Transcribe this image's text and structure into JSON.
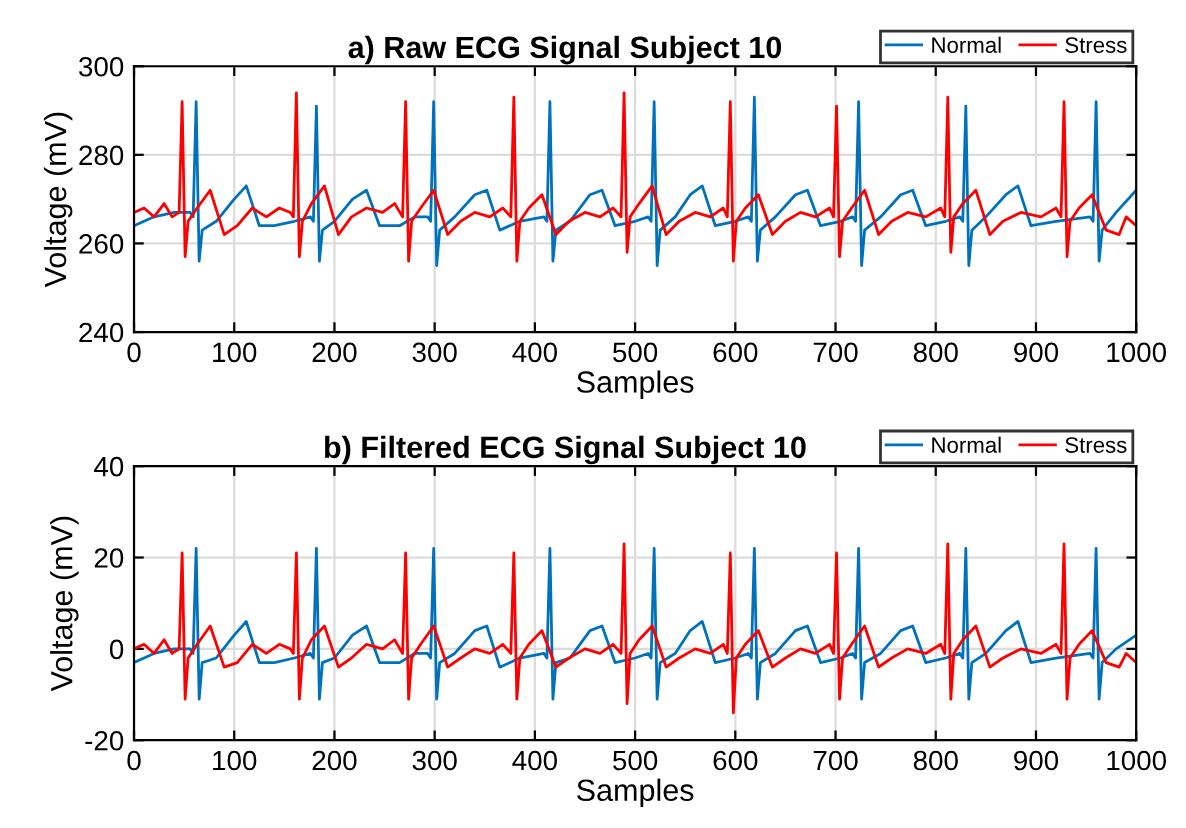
{
  "chart_data": [
    {
      "type": "line",
      "title": "a) Raw ECG Signal Subject 10",
      "xlabel": "Samples",
      "ylabel": "Voltage (mV)",
      "xlim": [
        0,
        1000
      ],
      "ylim": [
        240,
        300
      ],
      "xticks": [
        0,
        100,
        200,
        300,
        400,
        500,
        600,
        700,
        800,
        900,
        1000
      ],
      "yticks": [
        240,
        260,
        280,
        300
      ],
      "grid": true,
      "legend": "top right",
      "series": [
        {
          "name": "Normal",
          "color": "#0072bd",
          "x": [
            0,
            20,
            40,
            56,
            59,
            62,
            65,
            68,
            82,
            100,
            112,
            125,
            140,
            160,
            176,
            179,
            182,
            185,
            188,
            200,
            218,
            232,
            245,
            265,
            280,
            293,
            296,
            299,
            302,
            305,
            320,
            340,
            352,
            365,
            385,
            409,
            412,
            415,
            418,
            421,
            435,
            455,
            467,
            480,
            500,
            513,
            516,
            519,
            522,
            525,
            540,
            555,
            567,
            580,
            600,
            613,
            616,
            619,
            622,
            625,
            640,
            660,
            672,
            685,
            705,
            717,
            720,
            723,
            726,
            729,
            745,
            765,
            777,
            790,
            810,
            824,
            827,
            830,
            833,
            836,
            850,
            870,
            882,
            895,
            920,
            954,
            957,
            960,
            963,
            966,
            980,
            1000
          ],
          "values": [
            264,
            266,
            267,
            267,
            266,
            292,
            256,
            263,
            265,
            270,
            273,
            264,
            264,
            265,
            266,
            265,
            291,
            256,
            263,
            265,
            270,
            272,
            264,
            264,
            266,
            266,
            265,
            292,
            255,
            263,
            266,
            271,
            272,
            263,
            265,
            266,
            265,
            292,
            256,
            263,
            265,
            271,
            272,
            264,
            265,
            266,
            265,
            292,
            255,
            263,
            266,
            271,
            273,
            264,
            265,
            266,
            265,
            293,
            256,
            263,
            266,
            271,
            272,
            264,
            265,
            266,
            265,
            292,
            255,
            263,
            266,
            271,
            272,
            264,
            265,
            266,
            265,
            291,
            255,
            263,
            266,
            271,
            273,
            264,
            265,
            266,
            265,
            292,
            256,
            263,
            267,
            272
          ]
        },
        {
          "name": "Stress",
          "color": "#ff0000",
          "x": [
            0,
            10,
            20,
            30,
            38,
            45,
            48,
            51,
            54,
            63,
            76,
            90,
            103,
            118,
            132,
            145,
            156,
            159,
            162,
            165,
            168,
            177,
            190,
            204,
            217,
            232,
            248,
            260,
            268,
            271,
            274,
            277,
            286,
            299,
            313,
            326,
            340,
            355,
            368,
            376,
            379,
            382,
            385,
            394,
            407,
            421,
            434,
            450,
            465,
            478,
            486,
            489,
            492,
            495,
            504,
            517,
            531,
            544,
            560,
            575,
            588,
            592,
            595,
            598,
            601,
            610,
            623,
            637,
            650,
            665,
            680,
            694,
            698,
            701,
            704,
            707,
            716,
            729,
            743,
            756,
            772,
            790,
            805,
            809,
            812,
            815,
            818,
            827,
            840,
            854,
            867,
            885,
            905,
            920,
            925,
            928,
            931,
            934,
            943,
            956,
            970,
            983,
            990,
            1000
          ],
          "values": [
            267,
            268,
            266,
            269,
            266,
            267,
            292,
            257,
            265,
            268,
            272,
            262,
            264,
            268,
            266,
            268,
            267,
            266,
            294,
            257,
            265,
            269,
            273,
            262,
            266,
            268,
            267,
            269,
            266,
            292,
            256,
            265,
            268,
            272,
            262,
            265,
            267,
            266,
            268,
            266,
            293,
            256,
            265,
            268,
            271,
            262,
            265,
            267,
            266,
            268,
            266,
            294,
            258,
            266,
            269,
            273,
            262,
            265,
            267,
            266,
            268,
            266,
            292,
            256,
            265,
            268,
            271,
            262,
            265,
            267,
            266,
            268,
            266,
            291,
            257,
            265,
            268,
            272,
            262,
            265,
            267,
            266,
            268,
            266,
            293,
            258,
            266,
            269,
            272,
            262,
            265,
            267,
            266,
            268,
            266,
            292,
            257,
            265,
            268,
            271,
            263,
            262,
            266,
            264
          ]
        }
      ]
    },
    {
      "type": "line",
      "title": "b) Filtered ECG Signal Subject 10",
      "xlabel": "Samples",
      "ylabel": "Voltage (mV)",
      "xlim": [
        0,
        1000
      ],
      "ylim": [
        -20,
        40
      ],
      "xticks": [
        0,
        100,
        200,
        300,
        400,
        500,
        600,
        700,
        800,
        900,
        1000
      ],
      "yticks": [
        -20,
        0,
        20,
        40
      ],
      "grid": true,
      "legend": "top right",
      "series": [
        {
          "name": "Normal",
          "color": "#0072bd",
          "x": [
            0,
            20,
            40,
            56,
            59,
            62,
            65,
            68,
            82,
            100,
            112,
            125,
            140,
            160,
            176,
            179,
            182,
            185,
            188,
            200,
            218,
            232,
            245,
            265,
            280,
            293,
            296,
            299,
            302,
            305,
            320,
            340,
            352,
            365,
            385,
            409,
            412,
            415,
            418,
            421,
            435,
            455,
            467,
            480,
            500,
            513,
            516,
            519,
            522,
            525,
            540,
            555,
            567,
            580,
            600,
            613,
            616,
            619,
            622,
            625,
            640,
            660,
            672,
            685,
            705,
            717,
            720,
            723,
            726,
            729,
            745,
            765,
            777,
            790,
            810,
            824,
            827,
            830,
            833,
            836,
            850,
            870,
            882,
            895,
            920,
            954,
            957,
            960,
            963,
            966,
            980,
            1000
          ],
          "values": [
            -3,
            -1,
            0,
            0,
            -1,
            22,
            -11,
            -3,
            -2,
            3,
            6,
            -3,
            -3,
            -2,
            -1,
            -2,
            22,
            -11,
            -3,
            -2,
            3,
            5,
            -3,
            -3,
            -1,
            -1,
            -2,
            22,
            -11,
            -3,
            -1,
            4,
            5,
            -4,
            -2,
            -1,
            -2,
            22,
            -11,
            -3,
            -2,
            4,
            5,
            -3,
            -2,
            -1,
            -2,
            22,
            -11,
            -3,
            -1,
            4,
            6,
            -3,
            -2,
            -1,
            -2,
            22,
            -11,
            -3,
            -1,
            4,
            5,
            -3,
            -2,
            -1,
            -2,
            22,
            -11,
            -3,
            -1,
            4,
            5,
            -3,
            -2,
            -1,
            -2,
            22,
            -11,
            -3,
            -1,
            4,
            6,
            -3,
            -2,
            -1,
            -2,
            22,
            -11,
            -3,
            0,
            3
          ]
        },
        {
          "name": "Stress",
          "color": "#ff0000",
          "x": [
            0,
            10,
            20,
            30,
            38,
            45,
            48,
            51,
            54,
            63,
            76,
            90,
            103,
            118,
            132,
            145,
            156,
            159,
            162,
            165,
            168,
            177,
            190,
            204,
            217,
            232,
            248,
            260,
            268,
            271,
            274,
            277,
            286,
            299,
            313,
            326,
            340,
            355,
            368,
            376,
            379,
            382,
            385,
            394,
            407,
            421,
            434,
            450,
            465,
            478,
            486,
            489,
            492,
            495,
            504,
            517,
            531,
            544,
            560,
            575,
            588,
            592,
            595,
            598,
            601,
            610,
            623,
            637,
            650,
            665,
            680,
            694,
            698,
            701,
            704,
            707,
            716,
            729,
            743,
            756,
            772,
            790,
            805,
            809,
            812,
            815,
            818,
            827,
            840,
            854,
            867,
            885,
            905,
            920,
            925,
            928,
            931,
            934,
            943,
            956,
            970,
            983,
            990,
            1000
          ],
          "values": [
            0,
            1,
            -1,
            2,
            -1,
            0,
            21,
            -11,
            -2,
            1,
            5,
            -4,
            -3,
            1,
            -1,
            1,
            0,
            -1,
            21,
            -11,
            -2,
            2,
            5,
            -4,
            -2,
            1,
            0,
            2,
            -1,
            21,
            -11,
            -2,
            1,
            5,
            -4,
            -2,
            0,
            -1,
            1,
            -1,
            21,
            -11,
            -2,
            1,
            4,
            -4,
            -2,
            0,
            -1,
            1,
            -1,
            23,
            -12,
            -1,
            2,
            5,
            -4,
            -2,
            0,
            -1,
            1,
            -1,
            21,
            -14,
            -2,
            1,
            4,
            -4,
            -2,
            0,
            -1,
            1,
            -1,
            21,
            -11,
            -2,
            1,
            5,
            -4,
            -2,
            0,
            -1,
            1,
            -1,
            23,
            -11,
            -1,
            2,
            5,
            -4,
            -2,
            0,
            -1,
            1,
            -1,
            23,
            -11,
            -2,
            1,
            4,
            -3,
            -4,
            -1,
            -3
          ]
        }
      ]
    }
  ]
}
